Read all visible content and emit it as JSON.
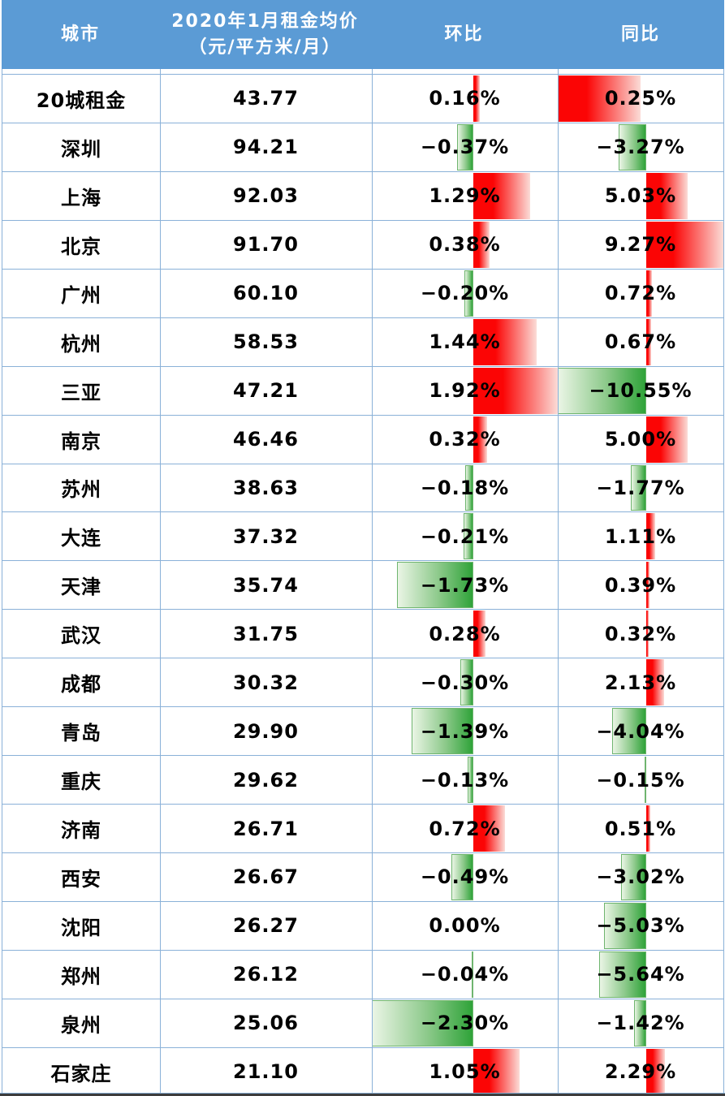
{
  "header": {
    "city": "城市",
    "rent_line1": "2020年1月租金均价",
    "rent_line2": "（元/平方米/月）",
    "mom": "环比",
    "yoy": "同比"
  },
  "colors": {
    "header_bg": "#5B9BD5",
    "grid_border": "#8AB1D8",
    "dark_bottom_border": "#3D3D3D",
    "bar_red_solid": "#FB0505",
    "bar_red_fade": "#FBDCD7",
    "bar_green_solid": "#2FA339",
    "bar_green_mid": "#8CC98A",
    "bar_green_fade": "#EAF5E5",
    "bar_green_border": "#6FB56F",
    "text": "#000000",
    "header_text": "#FFFFFF"
  },
  "chart_data": {
    "type": "table",
    "columns": [
      "城市",
      "2020年1月租金均价（元/平方米/月）",
      "环比",
      "同比"
    ],
    "databars": {
      "note": "gradient data bars: positive = red extending right of axis, negative = green extending left of axis",
      "mom": {
        "min": -2.3,
        "max": 1.92
      },
      "yoy": {
        "min": -10.55,
        "max": 9.27
      }
    },
    "rows": [
      {
        "city": "20城租金",
        "rent": "43.77",
        "mom": 0.16,
        "mom_label": "0.16%",
        "yoy": 0.25,
        "yoy_label": "0.25%",
        "yoy_bar": {
          "left_frac": 0,
          "width_frac": 0.498,
          "positive": true
        }
      },
      {
        "city": "深圳",
        "rent": "94.21",
        "mom": -0.37,
        "mom_label": "−0.37%",
        "yoy": -3.27,
        "yoy_label": "−3.27%"
      },
      {
        "city": "上海",
        "rent": "92.03",
        "mom": 1.29,
        "mom_label": "1.29%",
        "yoy": 5.03,
        "yoy_label": "5.03%"
      },
      {
        "city": "北京",
        "rent": "91.70",
        "mom": 0.38,
        "mom_label": "0.38%",
        "yoy": 9.27,
        "yoy_label": "9.27%"
      },
      {
        "city": "广州",
        "rent": "60.10",
        "mom": -0.2,
        "mom_label": "−0.20%",
        "yoy": 0.72,
        "yoy_label": "0.72%"
      },
      {
        "city": "杭州",
        "rent": "58.53",
        "mom": 1.44,
        "mom_label": "1.44%",
        "yoy": 0.67,
        "yoy_label": "0.67%"
      },
      {
        "city": "三亚",
        "rent": "47.21",
        "mom": 1.92,
        "mom_label": "1.92%",
        "yoy": -10.55,
        "yoy_label": "−10.55%"
      },
      {
        "city": "南京",
        "rent": "46.46",
        "mom": 0.32,
        "mom_label": "0.32%",
        "yoy": 5.0,
        "yoy_label": "5.00%"
      },
      {
        "city": "苏州",
        "rent": "38.63",
        "mom": -0.18,
        "mom_label": "−0.18%",
        "yoy": -1.77,
        "yoy_label": "−1.77%"
      },
      {
        "city": "大连",
        "rent": "37.32",
        "mom": -0.21,
        "mom_label": "−0.21%",
        "yoy": 1.11,
        "yoy_label": "1.11%"
      },
      {
        "city": "天津",
        "rent": "35.74",
        "mom": -1.73,
        "mom_label": "−1.73%",
        "yoy": 0.39,
        "yoy_label": "0.39%"
      },
      {
        "city": "武汉",
        "rent": "31.75",
        "mom": 0.28,
        "mom_label": "0.28%",
        "yoy": 0.32,
        "yoy_label": "0.32%"
      },
      {
        "city": "成都",
        "rent": "30.32",
        "mom": -0.3,
        "mom_label": "−0.30%",
        "yoy": 2.13,
        "yoy_label": "2.13%"
      },
      {
        "city": "青岛",
        "rent": "29.90",
        "mom": -1.39,
        "mom_label": "−1.39%",
        "yoy": -4.04,
        "yoy_label": "−4.04%"
      },
      {
        "city": "重庆",
        "rent": "29.62",
        "mom": -0.13,
        "mom_label": "−0.13%",
        "yoy": -0.15,
        "yoy_label": "−0.15%"
      },
      {
        "city": "济南",
        "rent": "26.71",
        "mom": 0.72,
        "mom_label": "0.72%",
        "yoy": 0.51,
        "yoy_label": "0.51%"
      },
      {
        "city": "西安",
        "rent": "26.67",
        "mom": -0.49,
        "mom_label": "−0.49%",
        "yoy": -3.02,
        "yoy_label": "−3.02%"
      },
      {
        "city": "沈阳",
        "rent": "26.27",
        "mom": 0.0,
        "mom_label": "0.00%",
        "yoy": -5.03,
        "yoy_label": "−5.03%"
      },
      {
        "city": "郑州",
        "rent": "26.12",
        "mom": -0.04,
        "mom_label": "−0.04%",
        "yoy": -5.64,
        "yoy_label": "−5.64%"
      },
      {
        "city": "泉州",
        "rent": "25.06",
        "mom": -2.3,
        "mom_label": "−2.30%",
        "yoy": -1.42,
        "yoy_label": "−1.42%"
      },
      {
        "city": "石家庄",
        "rent": "21.10",
        "mom": 1.05,
        "mom_label": "1.05%",
        "yoy": 2.29,
        "yoy_label": "2.29%"
      }
    ]
  }
}
